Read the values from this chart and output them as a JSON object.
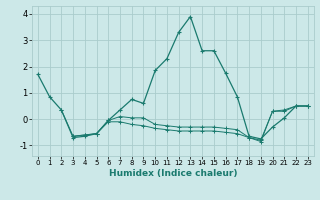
{
  "title": "",
  "xlabel": "Humidex (Indice chaleur)",
  "ylabel": "",
  "xlim": [
    -0.5,
    23.5
  ],
  "ylim": [
    -1.4,
    4.3
  ],
  "yticks": [
    -1,
    0,
    1,
    2,
    3,
    4
  ],
  "xticks": [
    0,
    1,
    2,
    3,
    4,
    5,
    6,
    7,
    8,
    9,
    10,
    11,
    12,
    13,
    14,
    15,
    16,
    17,
    18,
    19,
    20,
    21,
    22,
    23
  ],
  "bg_color": "#cce8e8",
  "grid_color": "#aacccc",
  "line_color": "#1a7a6e",
  "lines": [
    {
      "x": [
        0,
        1,
        2,
        3,
        4,
        5,
        6,
        7,
        8,
        9,
        10,
        11,
        12,
        13,
        14,
        15,
        16,
        17,
        18,
        19,
        20,
        21,
        22,
        23
      ],
      "y": [
        1.7,
        0.85,
        0.35,
        -0.7,
        -0.65,
        -0.55,
        -0.05,
        0.35,
        0.75,
        0.6,
        1.85,
        2.3,
        3.3,
        3.9,
        2.6,
        2.6,
        1.75,
        0.85,
        -0.65,
        -0.75,
        -0.3,
        0.05,
        0.5,
        0.5
      ]
    },
    {
      "x": [
        2,
        3,
        4,
        5,
        6,
        7,
        8,
        9,
        10,
        11,
        12,
        13,
        14,
        15,
        16,
        17,
        18,
        19,
        20,
        21,
        22,
        23
      ],
      "y": [
        0.35,
        -0.65,
        -0.6,
        -0.55,
        -0.05,
        0.1,
        0.05,
        0.05,
        -0.2,
        -0.25,
        -0.3,
        -0.3,
        -0.3,
        -0.3,
        -0.35,
        -0.4,
        -0.7,
        -0.85,
        0.3,
        0.35,
        0.5,
        0.5
      ]
    },
    {
      "x": [
        3,
        4,
        5,
        6,
        7,
        8,
        9,
        10,
        11,
        12,
        13,
        14,
        15,
        16,
        17,
        18,
        19,
        20,
        21,
        22,
        23
      ],
      "y": [
        -0.65,
        -0.6,
        -0.55,
        -0.1,
        -0.1,
        -0.2,
        -0.25,
        -0.35,
        -0.4,
        -0.45,
        -0.45,
        -0.45,
        -0.45,
        -0.5,
        -0.55,
        -0.7,
        -0.8,
        0.3,
        0.3,
        0.5,
        0.5
      ]
    }
  ]
}
